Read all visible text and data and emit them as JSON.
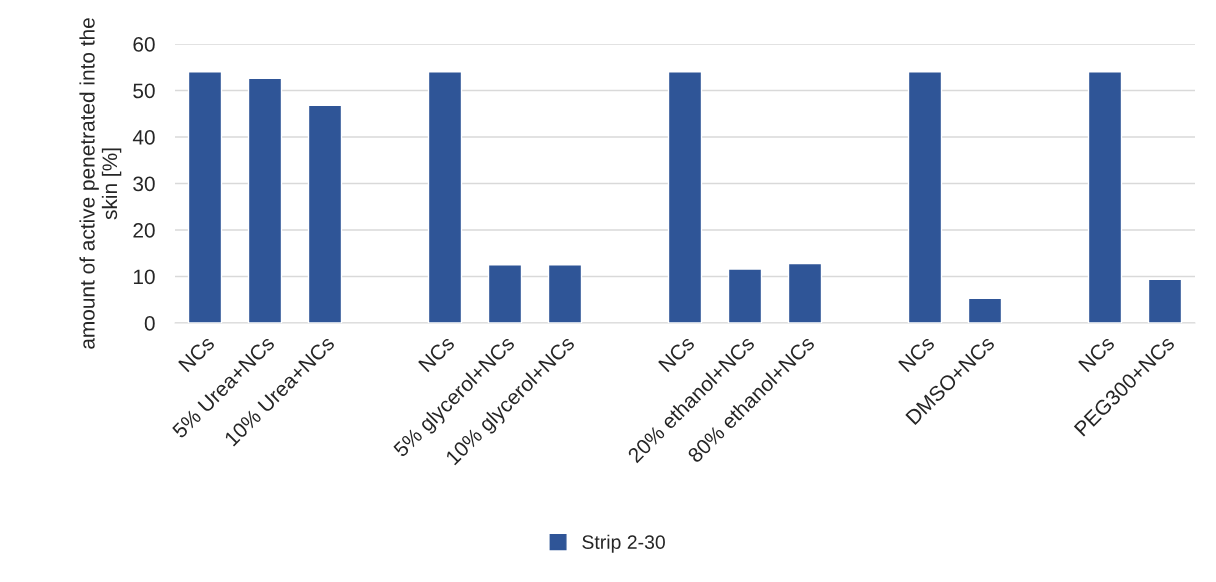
{
  "chart_data": {
    "type": "bar",
    "ylabel": "amount of active penetrated into the skin [%]",
    "categories": [
      "NCs",
      "5% Urea+NCs",
      "10% Urea+NCs",
      null,
      "NCs",
      "5% glycerol+NCs",
      "10% glycerol+NCs",
      null,
      "NCs",
      "20% ethanol+NCs",
      "80% ethanol+NCs",
      null,
      "NCs",
      "DMSO+NCs",
      null,
      "NCs",
      "PEG300+NCs"
    ],
    "series": [
      {
        "name": "Strip 2-30",
        "color": "#2f5597",
        "values": [
          54,
          52.6,
          46.8,
          null,
          54,
          12.5,
          12.5,
          null,
          54,
          11.6,
          12.8,
          null,
          54,
          5.3,
          null,
          54,
          9.4
        ]
      }
    ],
    "ylim": [
      0,
      60
    ],
    "yticks": [
      0,
      10,
      20,
      30,
      40,
      50,
      60
    ],
    "grid": "y",
    "legend": "bottom"
  }
}
